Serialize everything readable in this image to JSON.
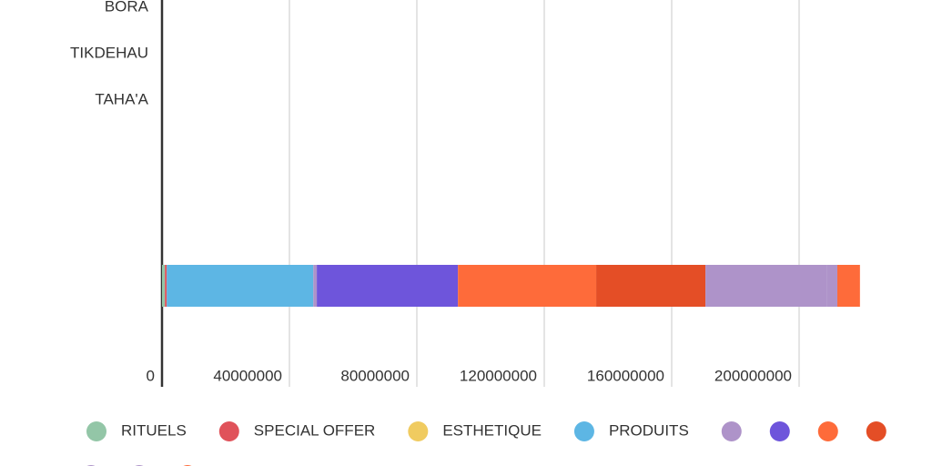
{
  "chart_data": {
    "type": "stacked-bar-horizontal",
    "categories": [
      "BORA",
      "TIKDEHAU",
      "TAHA'A",
      null,
      null,
      null,
      null
    ],
    "series": [
      {
        "name": "RITUELS",
        "color": "#93c6a7",
        "values": [
          null,
          null,
          null,
          null,
          null,
          null,
          900000
        ]
      },
      {
        "name": "SPECIAL OFFER",
        "color": "#e0525a",
        "values": [
          null,
          null,
          null,
          null,
          null,
          null,
          600000
        ]
      },
      {
        "name": "ESTHETIQUE",
        "color": "#f0cb60",
        "values": [
          null,
          null,
          null,
          null,
          null,
          null,
          null
        ]
      },
      {
        "name": "PRODUITS",
        "color": "#5db6e4",
        "values": [
          null,
          null,
          null,
          null,
          null,
          null,
          46000000
        ]
      },
      {
        "name": null,
        "color": "#ae93c9",
        "values": [
          null,
          null,
          null,
          null,
          null,
          null,
          1100000
        ]
      },
      {
        "name": null,
        "color": "#6e55db",
        "values": [
          null,
          null,
          null,
          null,
          null,
          null,
          44300000
        ]
      },
      {
        "name": null,
        "color": "#fe6b3a",
        "values": [
          null,
          null,
          null,
          null,
          null,
          null,
          43400000
        ]
      },
      {
        "name": null,
        "color": "#e44e26",
        "values": [
          null,
          null,
          null,
          null,
          null,
          null,
          34300000
        ]
      },
      {
        "name": null,
        "color": "#ae93c9",
        "values": [
          null,
          null,
          null,
          null,
          null,
          null,
          38000000
        ]
      },
      {
        "name": null,
        "color": "#ae93c9",
        "values": [
          null,
          null,
          null,
          null,
          null,
          null,
          3400000
        ]
      },
      {
        "name": null,
        "color": "#fe6b3a",
        "values": [
          null,
          null,
          null,
          null,
          null,
          null,
          7100000
        ]
      }
    ],
    "xlim": [
      0,
      240000000
    ],
    "xticks": [
      0,
      40000000,
      80000000,
      120000000,
      160000000,
      200000000
    ],
    "grid": true
  }
}
